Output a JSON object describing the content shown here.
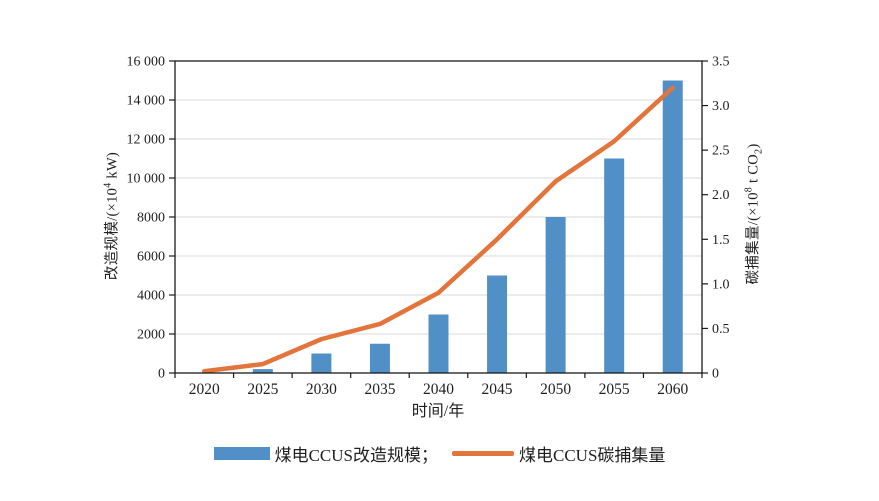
{
  "chart_data": {
    "type": "bar+line",
    "categories": [
      "2020",
      "2025",
      "2030",
      "2035",
      "2040",
      "2045",
      "2050",
      "2055",
      "2060"
    ],
    "series": [
      {
        "name": "煤电CCUS改造规模",
        "type": "bar",
        "axis": "left",
        "color": "#5090C7",
        "values": [
          0,
          200,
          1000,
          1500,
          3000,
          5000,
          8000,
          11000,
          15000
        ]
      },
      {
        "name": "煤电CCUS碳捕集量",
        "type": "line",
        "axis": "right",
        "color": "#E2743C",
        "values": [
          0.02,
          0.1,
          0.38,
          0.55,
          0.9,
          1.5,
          2.15,
          2.6,
          3.2
        ]
      }
    ],
    "left_axis": {
      "title_pre": "改造规模/(×10",
      "title_sup": "4",
      "title_post": " kW)",
      "min": 0,
      "max": 16000,
      "step": 2000,
      "ticks": [
        "0",
        "2000",
        "4000",
        "6000",
        "8000",
        "10 000",
        "12 000",
        "14 000",
        "16 000"
      ]
    },
    "right_axis": {
      "title_pre": "碳捕集量/(×10",
      "title_sup": "8",
      "title_mid": " t CO",
      "title_sub": "2",
      "title_post": ")",
      "min": 0,
      "max": 3.5,
      "step": 0.5,
      "ticks": [
        "0",
        "0.5",
        "1.0",
        "1.5",
        "2.0",
        "2.5",
        "3.0",
        "3.5"
      ]
    },
    "x_axis": {
      "title": "时间/年"
    },
    "legend": [
      {
        "label": "煤电CCUS改造规模；",
        "marker": "bar"
      },
      {
        "label": "煤电CCUS碳捕集量",
        "marker": "line"
      }
    ],
    "layout_hints": {
      "grid": "horizontal only",
      "legend_position": "bottom center",
      "plot_border": "full box",
      "bar_color": "#5090C7",
      "line_color": "#E2743C",
      "grid_color": "#D8D8D8",
      "axis_color": "#1a1a1a"
    }
  }
}
